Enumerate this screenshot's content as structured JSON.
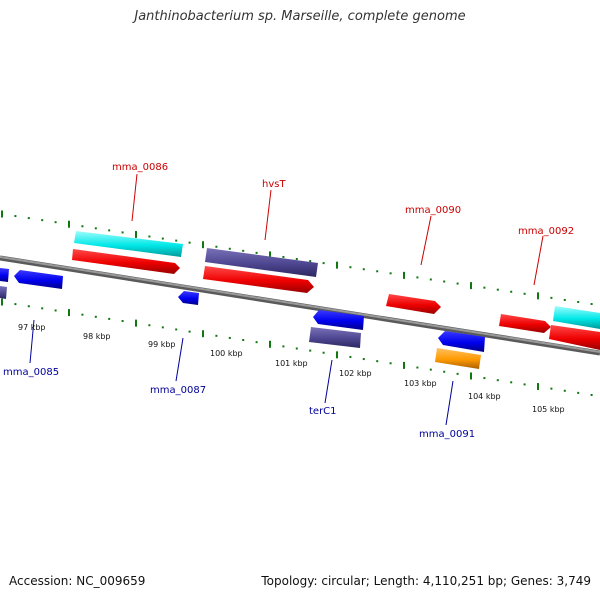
{
  "title": "Janthinobacterium sp. Marseille, complete genome",
  "footer": {
    "accession": "Accession: NC_009659",
    "summary": "Topology: circular; Length: 4,110,251 bp; Genes: 3,749"
  },
  "colors": {
    "forward_label": "#cc0000",
    "reverse_label": "#000099",
    "tick": "#117711",
    "backbone": "#888888"
  },
  "kbp_labels": [
    "97 kbp",
    "98 kbp",
    "99 kbp",
    "100 kbp",
    "101 kbp",
    "102 kbp",
    "103 kbp",
    "104 kbp",
    "105 kbp"
  ],
  "labels": [
    {
      "text": "mma_0085",
      "strand": "reverse"
    },
    {
      "text": "mma_0086",
      "strand": "forward"
    },
    {
      "text": "mma_0087",
      "strand": "reverse"
    },
    {
      "text": "hvsT",
      "strand": "forward"
    },
    {
      "text": "terC1",
      "strand": "reverse"
    },
    {
      "text": "mma_0090",
      "strand": "forward"
    },
    {
      "text": "mma_0091",
      "strand": "reverse"
    },
    {
      "text": "mma_0092",
      "strand": "forward"
    }
  ]
}
